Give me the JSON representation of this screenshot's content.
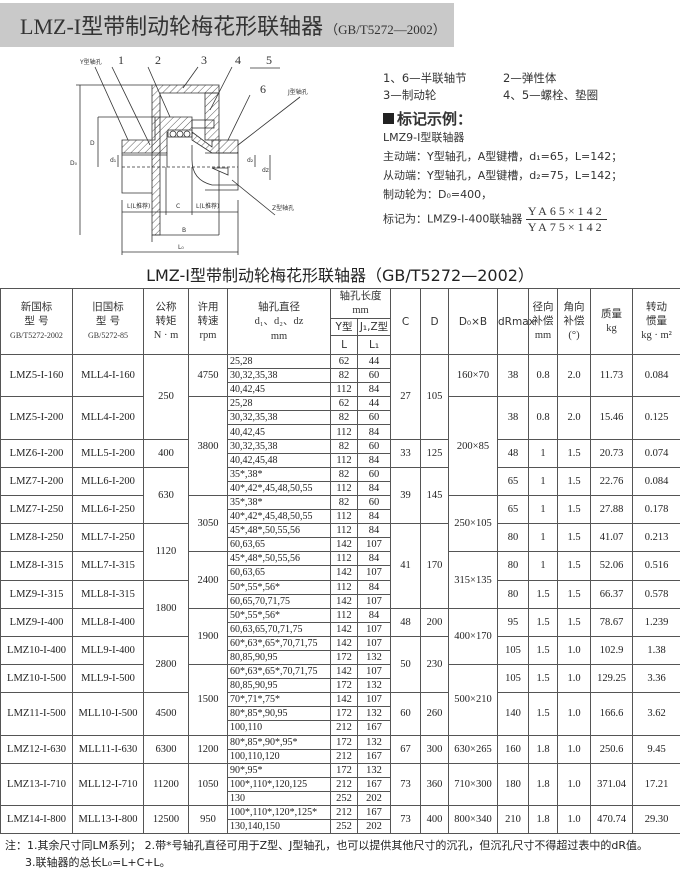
{
  "header": {
    "title": "LMZ-I型带制动轮梅花形联轴器",
    "standard": "（GB/T5272—2002）"
  },
  "diagram": {
    "part_labels": [
      "1",
      "2",
      "3",
      "4",
      "5",
      "6"
    ],
    "y_bore": "Y型轴孔",
    "j_bore": "J型轴孔",
    "z_bore": "Z型轴孔",
    "dim_l_left": "L(L推荐)",
    "dim_c": "C",
    "dim_l_right": "L(L推荐)",
    "dim_b": "B",
    "dim_l0": "L₀",
    "dim_d0": "D₀",
    "dim_d": "D",
    "dim_d1": "d₁",
    "dim_d2": "d₂",
    "dim_dz": "dz"
  },
  "legend": {
    "parts": [
      [
        "1、6—半联轴节",
        "2—弹性体"
      ],
      [
        "3—制动轮",
        "4、5—螺栓、垫圈"
      ]
    ],
    "mark_title": "标记示例：",
    "example": {
      "line1": "LMZ9-Ⅰ型联轴器",
      "line2": "主动端：Y型轴孔，A型键槽，d₁=65，L=142；",
      "line3": "从动端：Y型轴孔，A型键槽，d₂=75，L=142；",
      "line4": "制动轮为：D₀=400，",
      "line5_prefix": "标记为：LMZ9-Ⅰ-400联轴器",
      "frac_num": "YA65×142",
      "frac_den": "YA75×142"
    }
  },
  "table": {
    "title": "LMZ-I型带制动轮梅花形联轴器（GB/T5272—2002）",
    "headers": {
      "new_model": [
        "新国标",
        "型  号",
        "GB/T5272-2002"
      ],
      "old_model": [
        "旧国标",
        "型  号",
        "GB/5272-85"
      ],
      "torque": [
        "公称",
        "转矩",
        "N · m"
      ],
      "speed": [
        "许用",
        "转速",
        "rpm"
      ],
      "bore": [
        "轴孔直径",
        "d₁、d₂、dz",
        "mm"
      ],
      "bore_length": [
        "轴孔长度",
        "mm"
      ],
      "y_type": "Y型",
      "jz_type": "J₁,Z型",
      "L": "L",
      "L1": "L₁",
      "C": "C",
      "D": "D",
      "D0B": "D₀×B",
      "dR": "dRmax",
      "radial": [
        "径向",
        "补偿",
        "mm"
      ],
      "angular": [
        "角向",
        "补偿",
        "(°)"
      ],
      "mass": [
        "质量",
        "kg"
      ],
      "inertia": [
        "转动",
        "惯量",
        "kg · m²"
      ]
    },
    "models": [
      {
        "new": "LMZ5-I-160",
        "old": "MLL4-I-160",
        "dR": "38",
        "radial": "0.8",
        "angular": "2.0",
        "mass": "11.73",
        "inertia": "0.084",
        "bores": [
          {
            "d": "25,28",
            "L": "62",
            "L1": "44"
          },
          {
            "d": "30,32,35,38",
            "L": "82",
            "L1": "60"
          },
          {
            "d": "40,42,45",
            "L": "112",
            "L1": "84"
          }
        ]
      },
      {
        "new": "LMZ5-I-200",
        "old": "MLL4-I-200",
        "dR": "38",
        "radial": "0.8",
        "angular": "2.0",
        "mass": "15.46",
        "inertia": "0.125",
        "bores": [
          {
            "d": "25,28",
            "L": "62",
            "L1": "44"
          },
          {
            "d": "30,32,35,38",
            "L": "82",
            "L1": "60"
          },
          {
            "d": "40,42,45",
            "L": "112",
            "L1": "84"
          }
        ]
      },
      {
        "new": "LMZ6-I-200",
        "old": "MLL5-I-200",
        "dR": "48",
        "radial": "1",
        "angular": "1.5",
        "mass": "20.73",
        "inertia": "0.074",
        "bores": [
          {
            "d": "30,32,35,38",
            "L": "82",
            "L1": "60"
          },
          {
            "d": "40,42,45,48",
            "L": "112",
            "L1": "84"
          }
        ]
      },
      {
        "new": "LMZ7-I-200",
        "old": "MLL6-I-200",
        "dR": "65",
        "radial": "1",
        "angular": "1.5",
        "mass": "22.76",
        "inertia": "0.084",
        "bores": [
          {
            "d": "35*,38*",
            "L": "82",
            "L1": "60"
          },
          {
            "d": "40*,42*,45,48,50,55",
            "L": "112",
            "L1": "84"
          }
        ]
      },
      {
        "new": "LMZ7-I-250",
        "old": "MLL6-I-250",
        "dR": "65",
        "radial": "1",
        "angular": "1.5",
        "mass": "27.88",
        "inertia": "0.178",
        "bores": [
          {
            "d": "35*,38*",
            "L": "82",
            "L1": "60"
          },
          {
            "d": "40*,42*,45,48,50,55",
            "L": "112",
            "L1": "84"
          }
        ]
      },
      {
        "new": "LMZ8-I-250",
        "old": "MLL7-I-250",
        "dR": "80",
        "radial": "1",
        "angular": "1.5",
        "mass": "41.07",
        "inertia": "0.213",
        "bores": [
          {
            "d": "45*,48*,50,55,56",
            "L": "112",
            "L1": "84"
          },
          {
            "d": "60,63,65",
            "L": "142",
            "L1": "107"
          }
        ]
      },
      {
        "new": "LMZ8-I-315",
        "old": "MLL7-I-315",
        "dR": "80",
        "radial": "1",
        "angular": "1.5",
        "mass": "52.06",
        "inertia": "0.516",
        "bores": [
          {
            "d": "45*,48*,50,55,56",
            "L": "112",
            "L1": "84"
          },
          {
            "d": "60,63,65",
            "L": "142",
            "L1": "107"
          }
        ]
      },
      {
        "new": "LMZ9-I-315",
        "old": "MLL8-I-315",
        "dR": "80",
        "radial": "1.5",
        "angular": "1.5",
        "mass": "66.37",
        "inertia": "0.578",
        "bores": [
          {
            "d": "50*,55*,56*",
            "L": "112",
            "L1": "84"
          },
          {
            "d": "60,65,70,71,75",
            "L": "142",
            "L1": "107"
          }
        ]
      },
      {
        "new": "LMZ9-I-400",
        "old": "MLL8-I-400",
        "dR": "95",
        "radial": "1.5",
        "angular": "1.5",
        "mass": "78.67",
        "inertia": "1.239",
        "bores": [
          {
            "d": "50*,55*,56*",
            "L": "112",
            "L1": "84"
          },
          {
            "d": "60,63,65,70,71,75",
            "L": "142",
            "L1": "107"
          }
        ]
      },
      {
        "new": "LMZ10-I-400",
        "old": "MLL9-I-400",
        "dR": "105",
        "radial": "1.5",
        "angular": "1.0",
        "mass": "102.9",
        "inertia": "1.38",
        "bores": [
          {
            "d": "60*,63*,65*,70,71,75",
            "L": "142",
            "L1": "107"
          },
          {
            "d": "80,85,90,95",
            "L": "172",
            "L1": "132"
          }
        ]
      },
      {
        "new": "LMZ10-I-500",
        "old": "MLL9-I-500",
        "dR": "105",
        "radial": "1.5",
        "angular": "1.0",
        "mass": "129.25",
        "inertia": "3.36",
        "bores": [
          {
            "d": "60*,63*,65*,70,71,75",
            "L": "142",
            "L1": "107"
          },
          {
            "d": "80,85,90,95",
            "L": "172",
            "L1": "132"
          }
        ]
      },
      {
        "new": "LMZ11-I-500",
        "old": "MLL10-I-500",
        "dR": "140",
        "radial": "1.5",
        "angular": "1.0",
        "mass": "166.6",
        "inertia": "3.62",
        "bores": [
          {
            "d": "70*,71*,75*",
            "L": "142",
            "L1": "107"
          },
          {
            "d": "80*,85*,90,95",
            "L": "172",
            "L1": "132"
          },
          {
            "d": "100,110",
            "L": "212",
            "L1": "167"
          }
        ]
      },
      {
        "new": "LMZ12-I-630",
        "old": "MLL11-I-630",
        "dR": "160",
        "radial": "1.8",
        "angular": "1.0",
        "mass": "250.6",
        "inertia": "9.45",
        "bores": [
          {
            "d": "80*,85*,90*,95*",
            "L": "172",
            "L1": "132"
          },
          {
            "d": "100,110,120",
            "L": "212",
            "L1": "167"
          }
        ]
      },
      {
        "new": "LMZ13-I-710",
        "old": "MLL12-I-710",
        "dR": "180",
        "radial": "1.8",
        "angular": "1.0",
        "mass": "371.04",
        "inertia": "17.21",
        "bores": [
          {
            "d": "90*,95*",
            "L": "172",
            "L1": "132"
          },
          {
            "d": "100*,110*,120,125",
            "L": "212",
            "L1": "167"
          },
          {
            "d": "130",
            "L": "252",
            "L1": "202"
          }
        ]
      },
      {
        "new": "LMZ14-I-800",
        "old": "MLL13-I-800",
        "dR": "210",
        "radial": "1.8",
        "angular": "1.0",
        "mass": "470.74",
        "inertia": "29.30",
        "bores": [
          {
            "d": "100*,110*,120*,125*",
            "L": "212",
            "L1": "167"
          },
          {
            "d": "130,140,150",
            "L": "252",
            "L1": "202"
          }
        ]
      }
    ],
    "torque_groups": [
      {
        "value": "250",
        "models": 2
      },
      {
        "value": "400",
        "models": 1
      },
      {
        "value": "630",
        "models": 2
      },
      {
        "value": "1120",
        "models": 2
      },
      {
        "value": "1800",
        "models": 2
      },
      {
        "value": "2800",
        "models": 2
      },
      {
        "value": "4500",
        "models": 1
      },
      {
        "value": "6300",
        "models": 1
      },
      {
        "value": "11200",
        "models": 1
      },
      {
        "value": "12500",
        "models": 1
      }
    ],
    "speed_groups": [
      {
        "value": "4750",
        "models": 1
      },
      {
        "value": "3800",
        "models": 3
      },
      {
        "value": "3050",
        "models": 2
      },
      {
        "value": "2400",
        "models": 2
      },
      {
        "value": "1900",
        "models": 2
      },
      {
        "value": "1500",
        "models": 2
      },
      {
        "value": "1200",
        "models": 1
      },
      {
        "value": "1050",
        "models": 1
      },
      {
        "value": "950",
        "models": 1
      }
    ],
    "c_d_groups": [
      {
        "C": "27",
        "D": "105",
        "models": 2
      },
      {
        "C": "33",
        "D": "125",
        "models": 1
      },
      {
        "C": "39",
        "D": "145",
        "models": 2
      },
      {
        "C": "41",
        "D": "170",
        "models": 3
      },
      {
        "C": "48",
        "D": "200",
        "models": 1
      },
      {
        "C": "50",
        "D": "230",
        "models": 2
      },
      {
        "C": "60",
        "D": "260",
        "models": 1
      },
      {
        "C": "67",
        "D": "300",
        "models": 1
      },
      {
        "C": "73",
        "D": "360",
        "models": 1
      },
      {
        "C": "73",
        "D": "400",
        "models": 1
      }
    ],
    "d0b_groups": [
      {
        "value": "160×70",
        "models": 1
      },
      {
        "value": "200×85",
        "models": 3
      },
      {
        "value": "250×105",
        "models": 2
      },
      {
        "value": "315×135",
        "models": 2
      },
      {
        "value": "400×170",
        "models": 2
      },
      {
        "value": "500×210",
        "models": 2
      },
      {
        "value": "630×265",
        "models": 1
      },
      {
        "value": "710×300",
        "models": 1
      },
      {
        "value": "800×340",
        "models": 1
      }
    ]
  },
  "notes": [
    "注：1.其余尺寸同LM系列； 2.带*号轴孔直径可用于Z型、J型轴孔，也可以提供其他尺寸的沉孔，但沉孔尺寸不得超过表中的dR值。",
    "3.联轴器的总长L₀=L+C+L。"
  ]
}
